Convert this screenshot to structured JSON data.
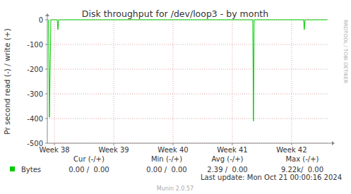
{
  "chart_data": {
    "type": "line",
    "title": "Disk throughput for /dev/loop3 - by month",
    "y_label": "Pr second read (-) / write (+)",
    "watermark": "RRDTOOL / TOBI OETIKER",
    "x": [
      37.9,
      37.916,
      37.928,
      37.94,
      38.047,
      38.059,
      38.071,
      41.344,
      41.356,
      41.368,
      42.201,
      42.213,
      42.225,
      42.6
    ],
    "series": [
      {
        "name": "Bytes",
        "color": "#00cc00",
        "values": [
          0,
          -395,
          -200,
          0,
          0,
          -40,
          0,
          0,
          -410,
          0,
          0,
          -40,
          0,
          0
        ],
        "stats": [
          "0.00 /  0.00",
          "0.00 /  0.00",
          "2.39 /  0.00",
          "9.22k/  0.00"
        ]
      }
    ],
    "stats_headers": [
      "Cur (-/+)",
      "Min (-/+)",
      "Avg (-/+)",
      "Max (-/+)"
    ],
    "xlim": [
      37.88,
      42.62
    ],
    "xticks": [
      {
        "value": 38,
        "label": "Week 38"
      },
      {
        "value": 39,
        "label": "Week 39"
      },
      {
        "value": 40,
        "label": "Week 40"
      },
      {
        "value": 41,
        "label": "Week 41"
      },
      {
        "value": 42,
        "label": "Week 42"
      }
    ],
    "ylim": [
      -500,
      0
    ],
    "yticks": [
      -500,
      -400,
      -300,
      -200,
      -100,
      0
    ],
    "grid": true,
    "last_update": "Last update: Mon Oct 21 00:00:16 2024",
    "footer": "Munin 2.0.57"
  }
}
